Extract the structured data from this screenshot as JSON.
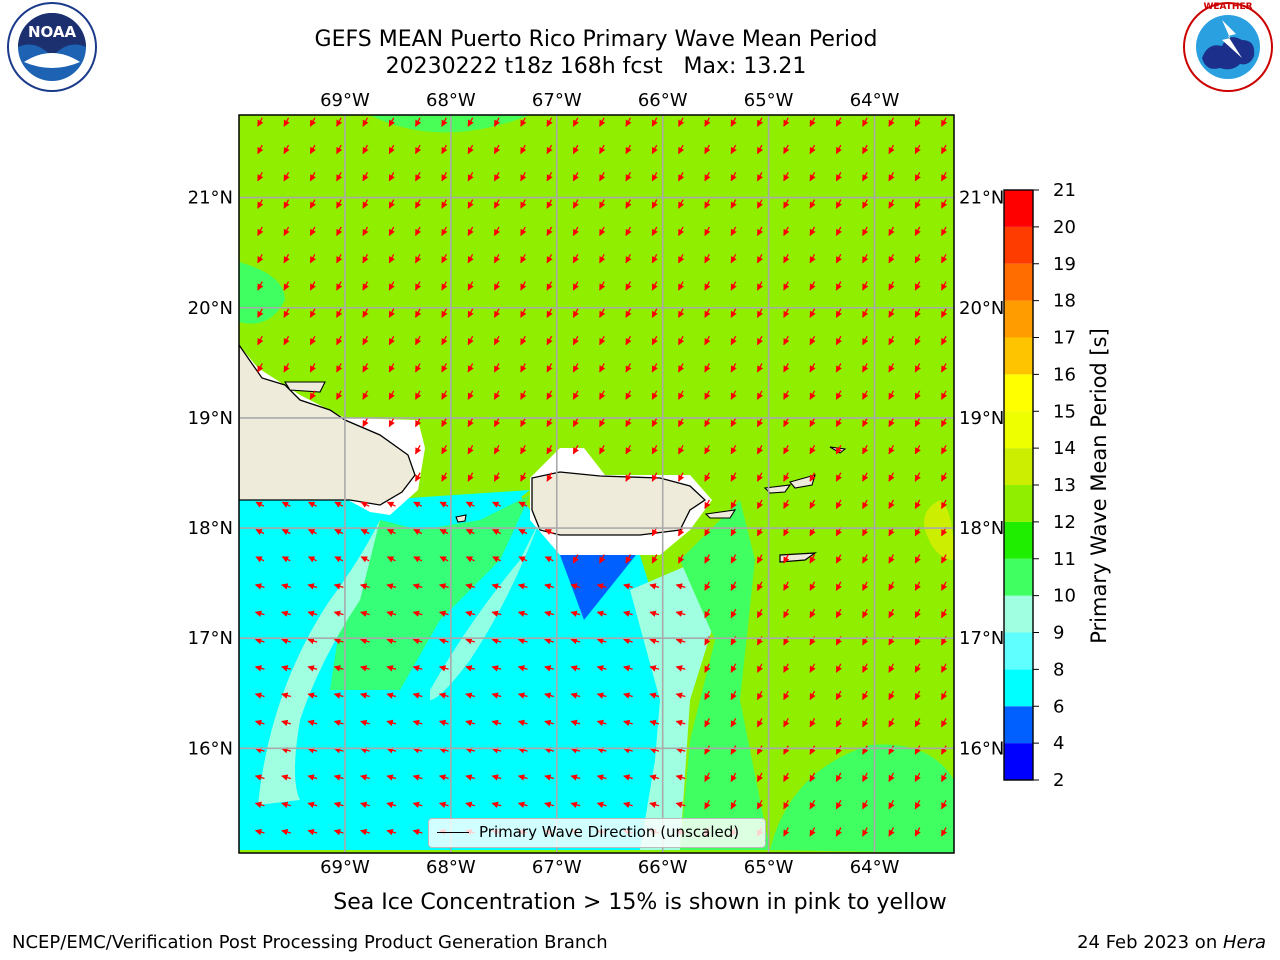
{
  "title": {
    "line1": "GEFS MEAN Puerto Rico Primary Wave Mean Period",
    "line2": "20230222 t18z 168h fcst   Max: 13.21"
  },
  "logos": {
    "left": {
      "name": "noaa-logo",
      "text": "NOAA",
      "ring_text": "NATIONAL OCEANIC AND ATMOSPHERIC ADMINISTRATION · U.S. DEPARTMENT OF COMMERCE"
    },
    "right": {
      "name": "nws-logo",
      "ring_text": "NATIONAL WEATHER SERVICE"
    }
  },
  "map": {
    "lon_ticks": [
      "69°W",
      "68°W",
      "67°W",
      "66°W",
      "65°W",
      "64°W"
    ],
    "lon_values": [
      -69,
      -68,
      -67,
      -66,
      -65,
      -64
    ],
    "lat_ticks": [
      "21°N",
      "20°N",
      "19°N",
      "18°N",
      "17°N",
      "16°N"
    ],
    "lat_values": [
      21,
      20,
      19,
      18,
      17,
      16
    ],
    "extent": {
      "lon_min": -70,
      "lon_max": -63.25,
      "lat_min": 15.05,
      "lat_max": 21.75
    },
    "arrow_color": "#ff0000",
    "land_color": "#efebdb",
    "legend_label": "Primary Wave Direction (unscaled)"
  },
  "colorbar": {
    "label": "Primary Wave Mean Period [s]",
    "ticks": [
      "21",
      "20",
      "19",
      "18",
      "17",
      "16",
      "15",
      "14",
      "13",
      "12",
      "11",
      "10",
      "9",
      "8",
      "6",
      "4",
      "2"
    ],
    "colors_bottom_to_top": [
      "#0000ff",
      "#0060ff",
      "#00ffff",
      "#60ffff",
      "#a0ffe0",
      "#40ff60",
      "#20ee00",
      "#90ee00",
      "#ccee00",
      "#eeff00",
      "#ffff00",
      "#ffc400",
      "#ff9c00",
      "#ff6c00",
      "#ff3c00",
      "#ff0000"
    ]
  },
  "caption": "Sea Ice Concentration > 15% is shown in pink to yellow",
  "footer": {
    "left": "NCEP/EMC/Verification Post Processing Product Generation Branch",
    "right_prefix": "24 Feb 2023 on ",
    "right_host": "Hera"
  }
}
